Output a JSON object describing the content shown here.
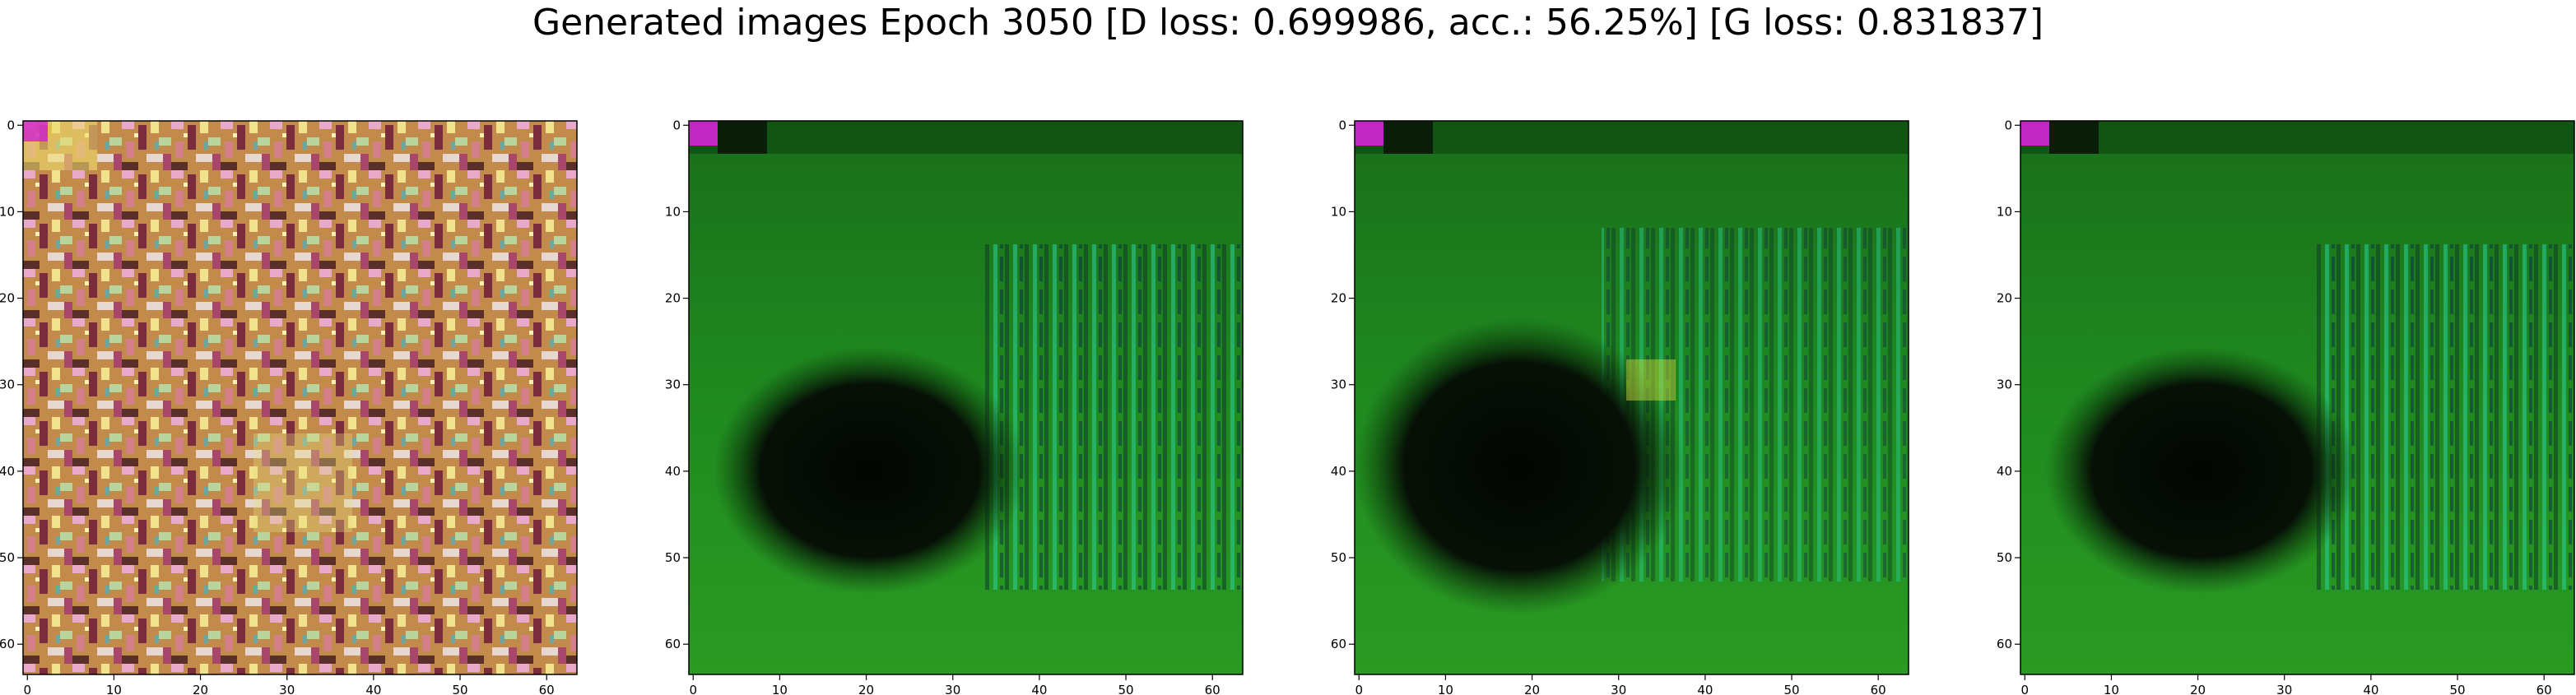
{
  "title": "Generated images Epoch 3050 [D loss: 0.699986, acc.: 56.25%] [G loss: 0.831837]",
  "chart_data": [
    {
      "type": "heatmap",
      "description": "image panel 1 (warm multicolor noise pattern)",
      "xlim": [
        -0.5,
        63.5
      ],
      "ylim": [
        63.5,
        -0.5
      ],
      "xticks": [
        0,
        10,
        20,
        30,
        40,
        50,
        60
      ],
      "yticks": [
        0,
        10,
        20,
        30,
        40,
        50,
        60
      ],
      "grid": false,
      "palette": {
        "base": "#c08a4a",
        "accents": [
          "#e8a6c8",
          "#f0e28a",
          "#7a2a3a",
          "#b9d8a0",
          "#3a2a2a"
        ]
      }
    },
    {
      "type": "heatmap",
      "description": "image panel 2 (green field, dark blob lower-left, teal streaks right)",
      "xlim": [
        -0.5,
        63.5
      ],
      "ylim": [
        63.5,
        -0.5
      ],
      "xticks": [
        0,
        10,
        20,
        30,
        40,
        50,
        60
      ],
      "yticks": [
        0,
        10,
        20,
        30,
        40,
        50,
        60
      ],
      "grid": false,
      "palette": {
        "base": "#1f8a1f",
        "dark": "#050805",
        "teal": "#20c8a0",
        "navy": "#0a2a4a"
      }
    },
    {
      "type": "heatmap",
      "description": "image panel 3 (green field, large dark blob center-left)",
      "xlim": [
        -0.5,
        63.5
      ],
      "ylim": [
        63.5,
        -0.5
      ],
      "xticks": [
        0,
        10,
        20,
        30,
        40,
        50,
        60
      ],
      "yticks": [
        0,
        10,
        20,
        30,
        40,
        50,
        60
      ],
      "grid": false,
      "palette": {
        "base": "#1f8a1f",
        "dark": "#050805",
        "teal": "#40d080",
        "navy": "#0a2a2a"
      }
    },
    {
      "type": "heatmap",
      "description": "image panel 4 (green field, dark blob lower-left, teal streaks right)",
      "xlim": [
        -0.5,
        63.5
      ],
      "ylim": [
        63.5,
        -0.5
      ],
      "xticks": [
        0,
        10,
        20,
        30,
        40,
        50,
        60
      ],
      "yticks": [
        0,
        10,
        20,
        30,
        40,
        50,
        60
      ],
      "grid": false,
      "palette": {
        "base": "#1f8a1f",
        "dark": "#050805",
        "teal": "#20c8a0",
        "navy": "#0a2a4a"
      }
    }
  ]
}
